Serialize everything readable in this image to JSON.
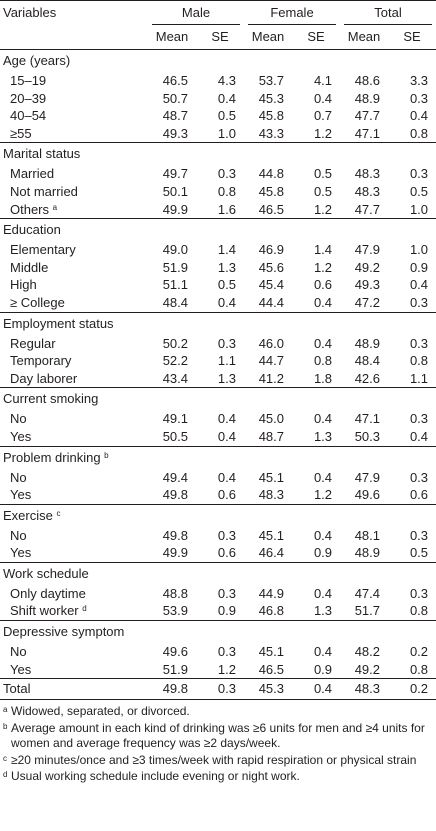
{
  "header": {
    "variables": "Variables",
    "groups": [
      "Male",
      "Female",
      "Total"
    ],
    "mean": "Mean",
    "se": "SE"
  },
  "sections": [
    {
      "title": "Age (years)",
      "rows": [
        {
          "label": "15–19",
          "values": [
            "46.5",
            "4.3",
            "53.7",
            "4.1",
            "48.6",
            "3.3"
          ]
        },
        {
          "label": "20–39",
          "values": [
            "50.7",
            "0.4",
            "45.3",
            "0.4",
            "48.9",
            "0.3"
          ]
        },
        {
          "label": "40–54",
          "values": [
            "48.7",
            "0.5",
            "45.8",
            "0.7",
            "47.7",
            "0.4"
          ]
        },
        {
          "label": "≥55",
          "values": [
            "49.3",
            "1.0",
            "43.3",
            "1.2",
            "47.1",
            "0.8"
          ]
        }
      ]
    },
    {
      "title": "Marital status",
      "rows": [
        {
          "label": "Married",
          "values": [
            "49.7",
            "0.3",
            "44.8",
            "0.5",
            "48.3",
            "0.3"
          ]
        },
        {
          "label": "Not married",
          "values": [
            "50.1",
            "0.8",
            "45.8",
            "0.5",
            "48.3",
            "0.5"
          ]
        },
        {
          "label": "Others",
          "sup": "a",
          "values": [
            "49.9",
            "1.6",
            "46.5",
            "1.2",
            "47.7",
            "1.0"
          ]
        }
      ]
    },
    {
      "title": "Education",
      "rows": [
        {
          "label": "Elementary",
          "values": [
            "49.0",
            "1.4",
            "46.9",
            "1.4",
            "47.9",
            "1.0"
          ]
        },
        {
          "label": "Middle",
          "values": [
            "51.9",
            "1.3",
            "45.6",
            "1.2",
            "49.2",
            "0.9"
          ]
        },
        {
          "label": "High",
          "values": [
            "51.1",
            "0.5",
            "45.4",
            "0.6",
            "49.3",
            "0.4"
          ]
        },
        {
          "label": "≥ College",
          "values": [
            "48.4",
            "0.4",
            "44.4",
            "0.4",
            "47.2",
            "0.3"
          ]
        }
      ]
    },
    {
      "title": "Employment status",
      "rows": [
        {
          "label": "Regular",
          "values": [
            "50.2",
            "0.3",
            "46.0",
            "0.4",
            "48.9",
            "0.3"
          ]
        },
        {
          "label": "Temporary",
          "values": [
            "52.2",
            "1.1",
            "44.7",
            "0.8",
            "48.4",
            "0.8"
          ]
        },
        {
          "label": "Day laborer",
          "values": [
            "43.4",
            "1.3",
            "41.2",
            "1.8",
            "42.6",
            "1.1"
          ]
        }
      ]
    },
    {
      "title": "Current smoking",
      "rows": [
        {
          "label": "No",
          "values": [
            "49.1",
            "0.4",
            "45.0",
            "0.4",
            "47.1",
            "0.3"
          ]
        },
        {
          "label": "Yes",
          "values": [
            "50.5",
            "0.4",
            "48.7",
            "1.3",
            "50.3",
            "0.4"
          ]
        }
      ]
    },
    {
      "title": "Problem drinking",
      "sup": "b",
      "rows": [
        {
          "label": "No",
          "values": [
            "49.4",
            "0.4",
            "45.1",
            "0.4",
            "47.9",
            "0.3"
          ]
        },
        {
          "label": "Yes",
          "values": [
            "49.8",
            "0.6",
            "48.3",
            "1.2",
            "49.6",
            "0.6"
          ]
        }
      ]
    },
    {
      "title": "Exercise",
      "sup": "c",
      "rows": [
        {
          "label": "No",
          "values": [
            "49.8",
            "0.3",
            "45.1",
            "0.4",
            "48.1",
            "0.3"
          ]
        },
        {
          "label": "Yes",
          "values": [
            "49.9",
            "0.6",
            "46.4",
            "0.9",
            "48.9",
            "0.5"
          ]
        }
      ]
    },
    {
      "title": "Work schedule",
      "rows": [
        {
          "label": "Only daytime",
          "values": [
            "48.8",
            "0.3",
            "44.9",
            "0.4",
            "47.4",
            "0.3"
          ]
        },
        {
          "label": "Shift worker",
          "sup": "d",
          "values": [
            "53.9",
            "0.9",
            "46.8",
            "1.3",
            "51.7",
            "0.8"
          ]
        }
      ]
    },
    {
      "title": "Depressive symptom",
      "rows": [
        {
          "label": "No",
          "values": [
            "49.6",
            "0.3",
            "45.1",
            "0.4",
            "48.2",
            "0.2"
          ]
        },
        {
          "label": "Yes",
          "values": [
            "51.9",
            "1.2",
            "46.5",
            "0.9",
            "49.2",
            "0.8"
          ]
        }
      ]
    }
  ],
  "total": {
    "label": "Total",
    "values": [
      "49.8",
      "0.3",
      "45.3",
      "0.4",
      "48.3",
      "0.2"
    ]
  },
  "footnotes": [
    {
      "mark": "a",
      "text": "Widowed, separated, or divorced."
    },
    {
      "mark": "b",
      "text": "Average amount in each kind of drinking was ≥6 units for men and ≥4 units for women and average frequency was ≥2 days/week."
    },
    {
      "mark": "c",
      "text": "≥20 minutes/once and ≥3 times/week with rapid respiration or physical strain"
    },
    {
      "mark": "d",
      "text": "Usual working schedule include evening or night work."
    }
  ]
}
